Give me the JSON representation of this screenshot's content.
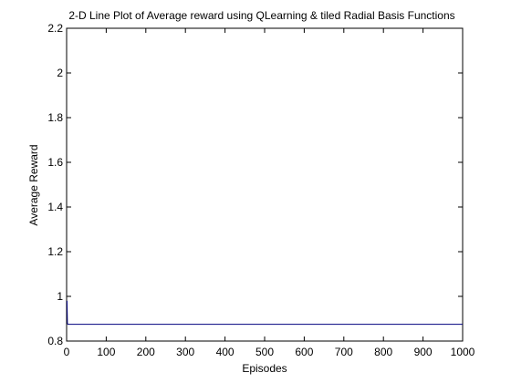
{
  "chart_data": {
    "type": "line",
    "title": "2-D Line Plot of Average reward using QLearning & tiled Radial Basis Functions",
    "xlabel": "Episodes",
    "ylabel": "Average Reward",
    "xlim": [
      0,
      1000
    ],
    "ylim": [
      0.8,
      2.2
    ],
    "xticks": [
      0,
      100,
      200,
      300,
      400,
      500,
      600,
      700,
      800,
      900,
      1000
    ],
    "yticks": [
      0.8,
      1,
      1.2,
      1.4,
      1.6,
      1.8,
      2,
      2.2
    ],
    "xtick_labels": [
      "0",
      "100",
      "200",
      "300",
      "400",
      "500",
      "600",
      "700",
      "800",
      "900",
      "1000"
    ],
    "ytick_labels": [
      "0.8",
      "1",
      "1.2",
      "1.4",
      "1.6",
      "1.8",
      "2",
      "2.2"
    ],
    "grid": false,
    "legend": "none",
    "series": [
      {
        "color": "#00007f",
        "x": [
          1,
          2,
          3,
          5,
          10,
          50,
          100,
          200,
          300,
          400,
          500,
          600,
          700,
          800,
          900,
          1000
        ],
        "y": [
          0.98,
          0.88,
          0.875,
          0.875,
          0.875,
          0.875,
          0.875,
          0.875,
          0.875,
          0.875,
          0.875,
          0.875,
          0.875,
          0.875,
          0.875,
          0.875
        ]
      }
    ]
  }
}
